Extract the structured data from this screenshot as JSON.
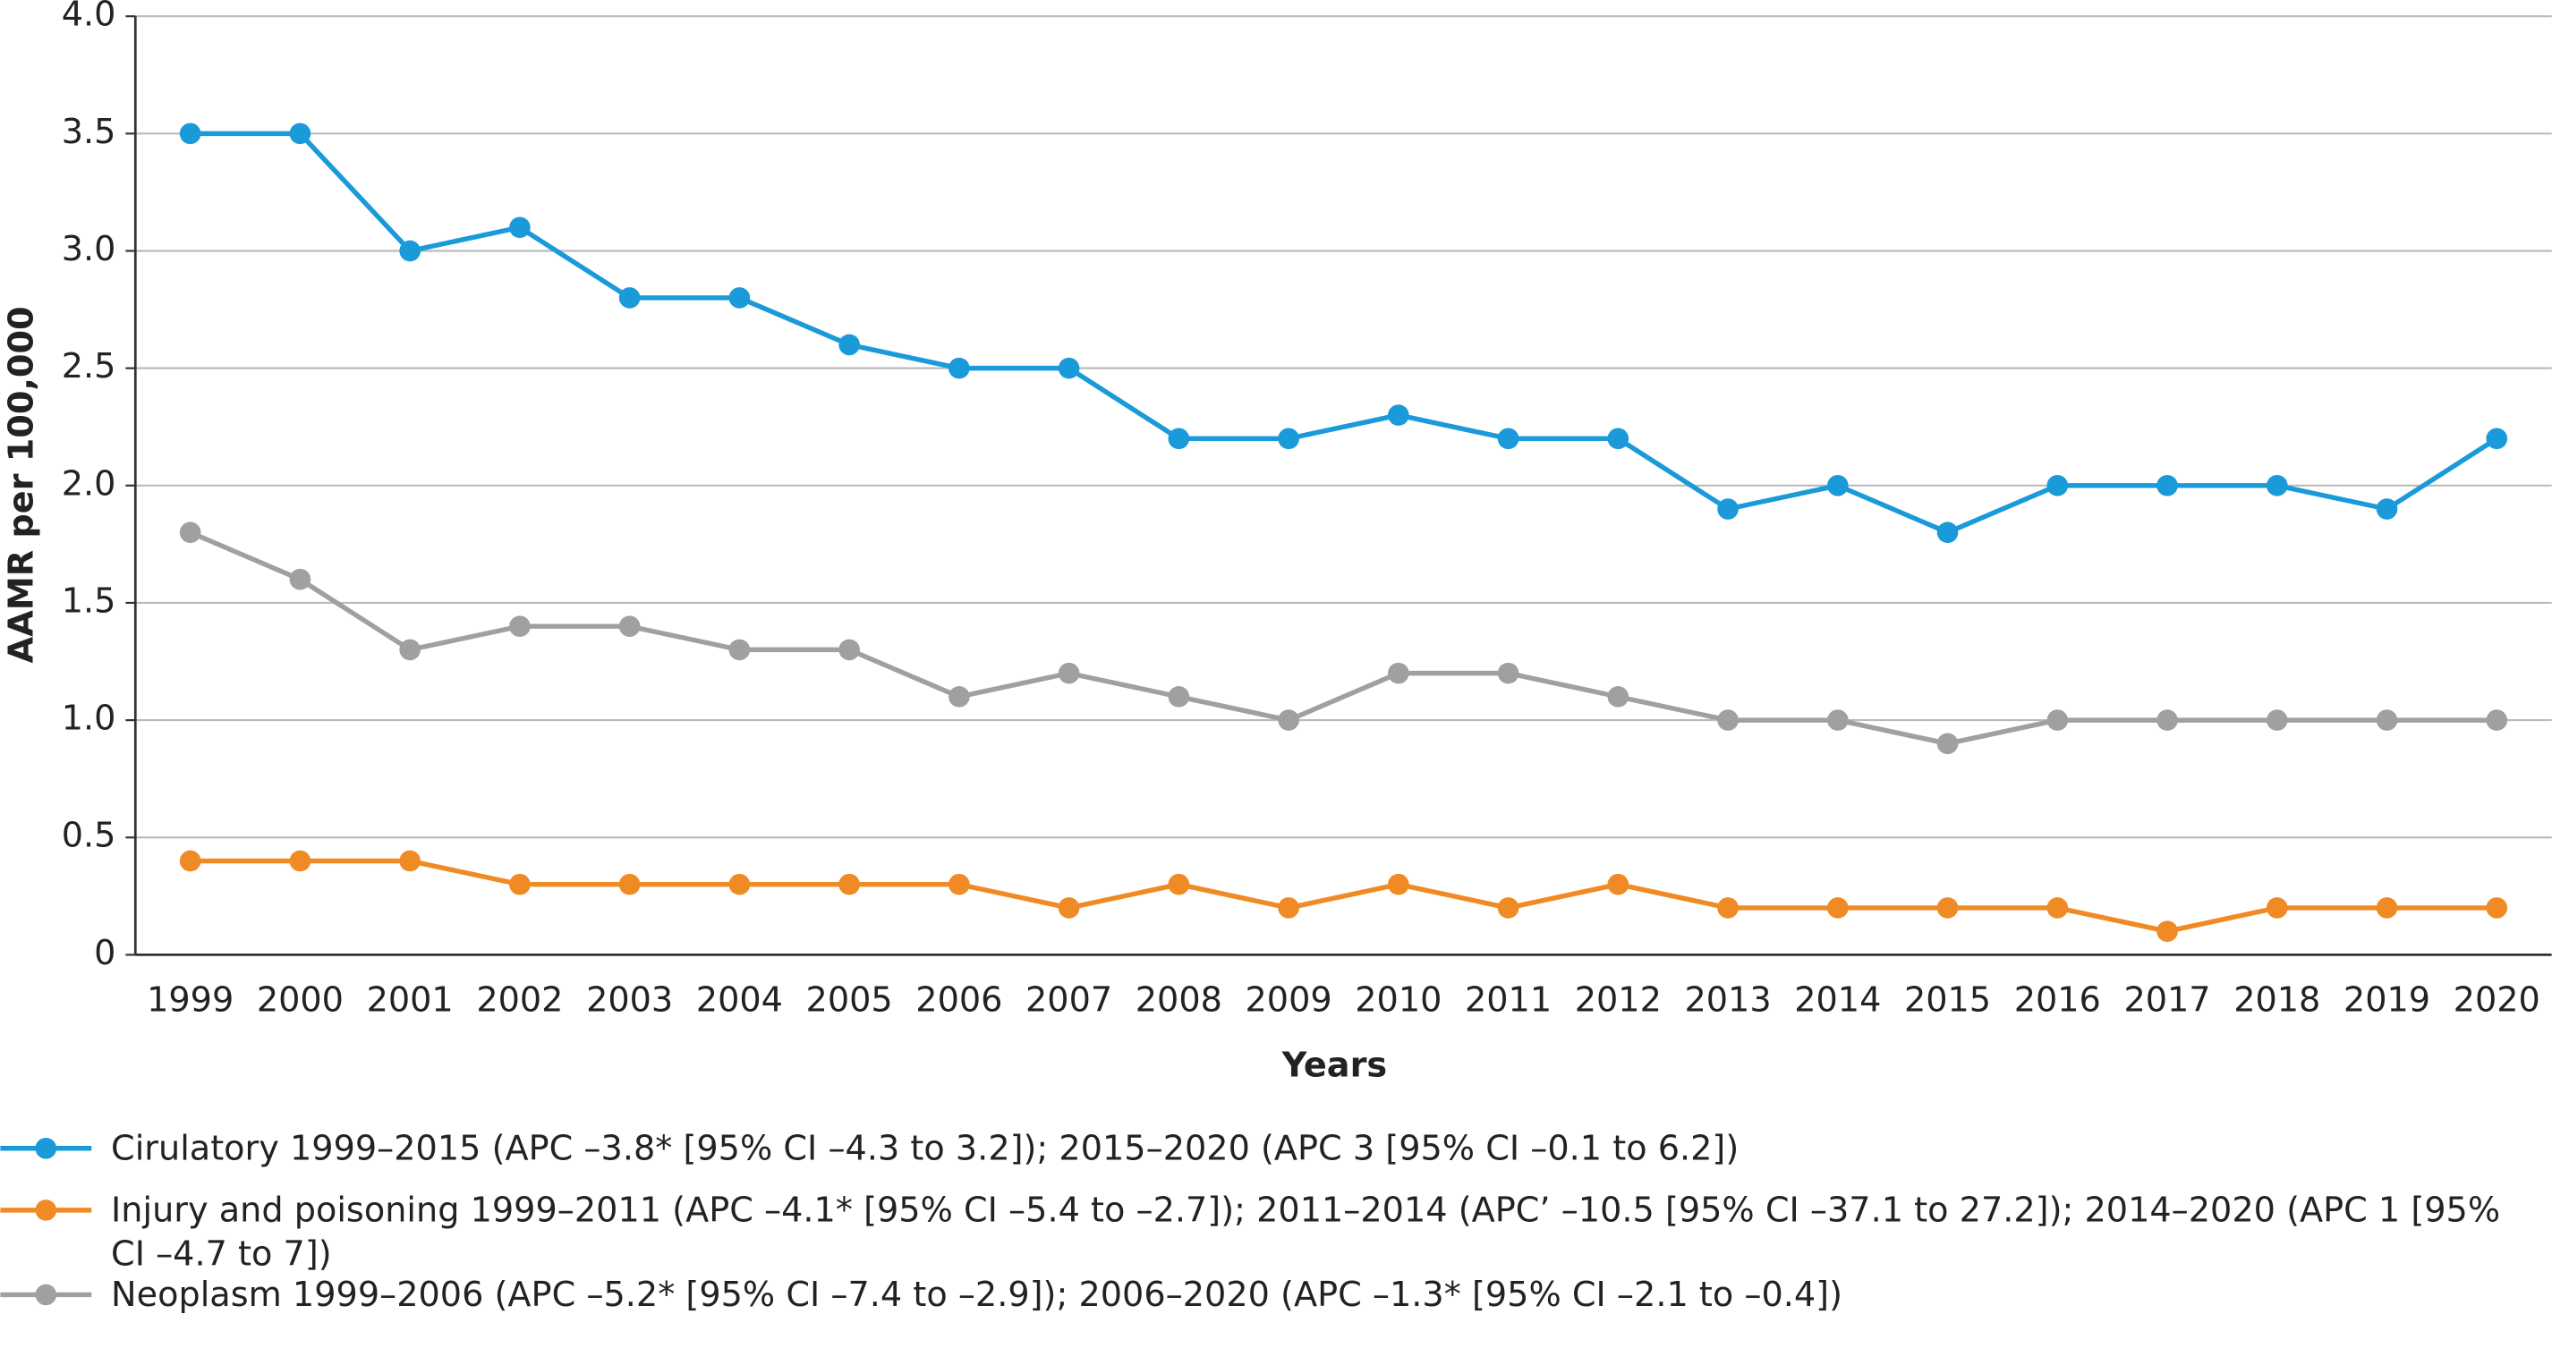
{
  "chart_data": {
    "type": "line",
    "categories": [
      "1999",
      "2000",
      "2001",
      "2002",
      "2003",
      "2004",
      "2005",
      "2006",
      "2007",
      "2008",
      "2009",
      "2010",
      "2011",
      "2012",
      "2013",
      "2014",
      "2015",
      "2016",
      "2017",
      "2018",
      "2019",
      "2020"
    ],
    "x_label": "Years",
    "y_label": "AAMR per 100,000",
    "ylim": [
      0,
      4
    ],
    "yticks": [
      0,
      0.5,
      {
        "value": 1,
        "label": "1.0"
      },
      1.5,
      {
        "value": 2,
        "label": "2.0"
      },
      2.5,
      {
        "value": 3,
        "label": "3.0"
      },
      3.5,
      {
        "value": 4,
        "label": "4.0"
      }
    ],
    "grid": true,
    "series": [
      {
        "name": "Cirulatory 1999–2015 (APC –3.8* [95% CI –4.3 to 3.2]); 2015–2020 (APC 3 [95% CI –0.1 to 6.2])",
        "color": "#1a9ad9",
        "values": [
          3.5,
          3.5,
          3.0,
          3.1,
          2.8,
          2.8,
          2.6,
          2.5,
          2.5,
          2.2,
          2.2,
          2.3,
          2.2,
          2.2,
          1.9,
          2.0,
          1.8,
          2.0,
          2.0,
          2.0,
          1.9,
          2.2
        ]
      },
      {
        "name": "Injury and poisoning 1999–2011 (APC –4.1* [95% CI –5.4 to –2.7]); 2011–2014 (APC’ –10.5 [95% CI –37.1 to 27.2]); 2014–2020 (APC 1 [95% CI –4.7 to 7])",
        "color": "#f08a24",
        "values": [
          0.4,
          0.4,
          0.4,
          0.3,
          0.3,
          0.3,
          0.3,
          0.3,
          0.2,
          0.3,
          0.2,
          0.3,
          0.2,
          0.3,
          0.2,
          0.2,
          0.2,
          0.2,
          0.1,
          0.2,
          0.2,
          0.2
        ]
      },
      {
        "name": "Neoplasm 1999–2006 (APC –5.2* [95% CI –7.4 to –2.9]); 2006–2020 (APC –1.3* [95% CI –2.1 to –0.4])",
        "color": "#a0a0a0",
        "values": [
          1.8,
          1.6,
          1.3,
          1.4,
          1.4,
          1.3,
          1.3,
          1.1,
          1.2,
          1.1,
          1.0,
          1.2,
          1.2,
          1.1,
          1.0,
          1.0,
          0.9,
          1.0,
          1.0,
          1.0,
          1.0,
          1.0
        ]
      }
    ]
  }
}
